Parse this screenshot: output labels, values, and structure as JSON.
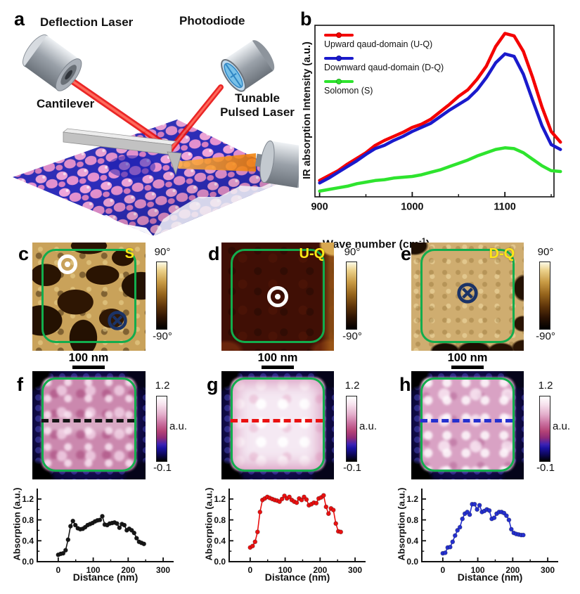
{
  "letters": {
    "a": "a",
    "b": "b",
    "c": "c",
    "d": "d",
    "e": "e",
    "f": "f",
    "g": "g",
    "h": "h"
  },
  "panel_a": {
    "deflection_laser": "Deflection Laser",
    "photodiode": "Photodiode",
    "cantilever": "Cantilever",
    "tunable_line1": "Tunable",
    "tunable_line2": "Pulsed Laser"
  },
  "panel_b": {
    "ylabel": "IR absorption Intensity (a.u.)",
    "xlabel_prefix": "Wave number (cm",
    "xlabel_sup": "-1",
    "xlabel_suffix": ")",
    "legend": [
      {
        "label": "Upward qaud-domain (U-Q)",
        "color": "#f40000"
      },
      {
        "label": "Downward qaud-domain (D-Q)",
        "color": "#1a1acc"
      },
      {
        "label": "Solomon (S)",
        "color": "#2ee42e"
      }
    ]
  },
  "pfm_panels": [
    {
      "tag": "S",
      "cbar_top": "90°",
      "cbar_bottom": "-90°",
      "scale_label": "100 nm"
    },
    {
      "tag": "U-Q",
      "cbar_top": "90°",
      "cbar_bottom": "-90°",
      "scale_label": "100 nm"
    },
    {
      "tag": "D-Q",
      "cbar_top": "90°",
      "cbar_bottom": "-90°",
      "scale_label": "100 nm"
    }
  ],
  "absorption_panels": [
    {
      "cbar_top": "1.2",
      "cbar_bottom": "-0.1",
      "cbar_unit": "a.u."
    },
    {
      "cbar_top": "1.2",
      "cbar_bottom": "-0.1",
      "cbar_unit": "a.u."
    },
    {
      "cbar_top": "1.2",
      "cbar_bottom": "-0.1",
      "cbar_unit": "a.u."
    }
  ],
  "chart_data": [
    {
      "id": "ir_spectra",
      "type": "line",
      "title": "",
      "xlabel": "Wave number (cm⁻¹)",
      "ylabel": "IR absorption Intensity (a.u.)",
      "xlim": [
        895,
        1153
      ],
      "ylim": [
        0,
        1.05
      ],
      "xticks": [
        900,
        1000,
        1100
      ],
      "xminor": [
        950,
        1050,
        1150
      ],
      "box": true,
      "legend_position": "inside top-left",
      "grid": false,
      "x": [
        900,
        910,
        920,
        930,
        940,
        950,
        960,
        970,
        980,
        990,
        1000,
        1010,
        1020,
        1030,
        1040,
        1050,
        1060,
        1070,
        1080,
        1090,
        1100,
        1110,
        1120,
        1130,
        1140,
        1150,
        1160
      ],
      "series": [
        {
          "name": "Upward qaud-domain (U-Q)",
          "color": "#f40000",
          "lw": 4.5,
          "y": [
            0.1,
            0.13,
            0.16,
            0.2,
            0.235,
            0.27,
            0.315,
            0.345,
            0.37,
            0.395,
            0.425,
            0.445,
            0.475,
            0.52,
            0.565,
            0.615,
            0.655,
            0.72,
            0.8,
            0.92,
            1.0,
            0.985,
            0.89,
            0.73,
            0.55,
            0.4,
            0.335
          ]
        },
        {
          "name": "Downward qaud-domain (D-Q)",
          "color": "#1a1acc",
          "lw": 4.5,
          "y": [
            0.085,
            0.115,
            0.15,
            0.185,
            0.22,
            0.26,
            0.295,
            0.315,
            0.345,
            0.37,
            0.4,
            0.425,
            0.45,
            0.49,
            0.53,
            0.565,
            0.6,
            0.655,
            0.73,
            0.82,
            0.875,
            0.86,
            0.75,
            0.59,
            0.435,
            0.32,
            0.29
          ]
        },
        {
          "name": "Solomon (S)",
          "color": "#2ee42e",
          "lw": 4.5,
          "y": [
            0.035,
            0.045,
            0.055,
            0.065,
            0.08,
            0.09,
            0.1,
            0.105,
            0.115,
            0.12,
            0.125,
            0.135,
            0.15,
            0.165,
            0.185,
            0.205,
            0.225,
            0.25,
            0.27,
            0.29,
            0.3,
            0.295,
            0.27,
            0.23,
            0.19,
            0.16,
            0.155
          ]
        }
      ]
    },
    {
      "id": "profile_f",
      "type": "line",
      "markers": true,
      "xlabel": "Distance (nm)",
      "ylabel": "Absorption (a.u.)",
      "xlim": [
        -60,
        330
      ],
      "ylim": [
        0,
        1.4
      ],
      "ydec": 1,
      "xticks": [
        0,
        100,
        200,
        300
      ],
      "xminor": [
        50,
        150,
        250
      ],
      "yticks": [
        0,
        0.4,
        0.8,
        1.2
      ],
      "yminor": [
        0.2,
        0.6,
        1.0
      ],
      "box": false,
      "grid": false,
      "series": [
        {
          "name": "S line profile",
          "color": "#161616",
          "lw": 1.6,
          "markers": true,
          "r": 3,
          "x": [
            0,
            7,
            14,
            21,
            28,
            35,
            42,
            49,
            56,
            63,
            70,
            77,
            84,
            91,
            98,
            105,
            112,
            119,
            126,
            133,
            140,
            147,
            154,
            161,
            168,
            175,
            182,
            189,
            196,
            203,
            210,
            217,
            224,
            231,
            238,
            245
          ],
          "y": [
            0.13,
            0.15,
            0.16,
            0.22,
            0.42,
            0.68,
            0.78,
            0.7,
            0.64,
            0.62,
            0.63,
            0.66,
            0.7,
            0.72,
            0.74,
            0.77,
            0.79,
            0.8,
            0.87,
            0.71,
            0.7,
            0.73,
            0.74,
            0.75,
            0.73,
            0.65,
            0.72,
            0.7,
            0.6,
            0.63,
            0.6,
            0.55,
            0.45,
            0.38,
            0.36,
            0.34
          ]
        }
      ]
    },
    {
      "id": "profile_g",
      "type": "line",
      "markers": true,
      "xlabel": "Distance (nm)",
      "ylabel": "Absorption (a.u.)",
      "xlim": [
        -60,
        330
      ],
      "ylim": [
        0,
        1.4
      ],
      "ydec": 1,
      "xticks": [
        0,
        100,
        200,
        300
      ],
      "xminor": [
        50,
        150,
        250
      ],
      "yticks": [
        0,
        0.4,
        0.8,
        1.2
      ],
      "yminor": [
        0.2,
        0.6,
        1.0
      ],
      "box": false,
      "grid": false,
      "series": [
        {
          "name": "U-Q line profile",
          "color": "#ea1010",
          "lw": 1.6,
          "markers": true,
          "r": 3,
          "x": [
            0,
            7,
            14,
            21,
            28,
            35,
            42,
            49,
            56,
            63,
            70,
            77,
            84,
            91,
            98,
            105,
            112,
            119,
            126,
            133,
            140,
            147,
            154,
            161,
            168,
            175,
            182,
            189,
            196,
            203,
            210,
            217,
            224,
            231,
            238,
            245,
            252,
            259
          ],
          "y": [
            0.27,
            0.3,
            0.38,
            0.57,
            0.95,
            1.18,
            1.21,
            1.24,
            1.22,
            1.2,
            1.18,
            1.17,
            1.15,
            1.2,
            1.26,
            1.21,
            1.24,
            1.18,
            1.15,
            1.13,
            1.21,
            1.18,
            1.24,
            1.19,
            1.08,
            1.1,
            1.13,
            1.12,
            1.21,
            1.23,
            1.27,
            1.05,
            0.92,
            1.02,
            0.99,
            0.73,
            0.58,
            0.57
          ]
        }
      ]
    },
    {
      "id": "profile_h",
      "type": "line",
      "markers": true,
      "xlabel": "Distance (nm)",
      "ylabel": "Absorption (a.u.)",
      "xlim": [
        -60,
        330
      ],
      "ylim": [
        0,
        1.4
      ],
      "ydec": 1,
      "xticks": [
        0,
        100,
        200,
        300
      ],
      "xminor": [
        50,
        150,
        250
      ],
      "yticks": [
        0,
        0.4,
        0.8,
        1.2
      ],
      "yminor": [
        0.2,
        0.6,
        1.0
      ],
      "box": false,
      "grid": false,
      "series": [
        {
          "name": "D-Q line profile",
          "color": "#2530cf",
          "lw": 1.6,
          "markers": true,
          "r": 3,
          "x": [
            0,
            7,
            14,
            21,
            28,
            35,
            42,
            49,
            56,
            63,
            70,
            77,
            84,
            91,
            98,
            105,
            112,
            119,
            126,
            133,
            140,
            147,
            154,
            161,
            168,
            175,
            182,
            189,
            196,
            203,
            210,
            217,
            224,
            230
          ],
          "y": [
            0.16,
            0.17,
            0.27,
            0.28,
            0.38,
            0.5,
            0.6,
            0.66,
            0.82,
            0.92,
            0.95,
            0.9,
            1.1,
            1.1,
            1.0,
            1.08,
            0.95,
            0.97,
            1.0,
            0.98,
            0.82,
            0.84,
            0.92,
            0.95,
            0.95,
            0.93,
            0.88,
            0.8,
            0.62,
            0.55,
            0.53,
            0.52,
            0.51,
            0.51
          ]
        }
      ]
    }
  ]
}
